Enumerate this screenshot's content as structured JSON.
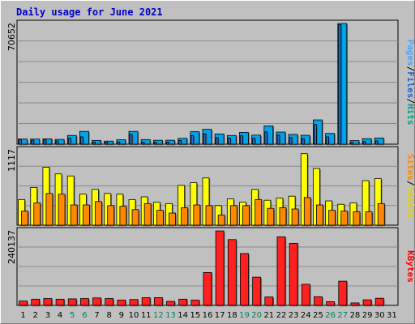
{
  "chart_data": {
    "type": "bar",
    "title": "Daily usage for June 2021",
    "categories": [
      "1",
      "2",
      "3",
      "4",
      "5",
      "6",
      "7",
      "8",
      "9",
      "10",
      "11",
      "12",
      "13",
      "14",
      "15",
      "16",
      "17",
      "18",
      "19",
      "20",
      "21",
      "22",
      "23",
      "24",
      "25",
      "26",
      "27",
      "28",
      "29",
      "30",
      "31"
    ],
    "weekend_days": [
      5,
      6,
      12,
      13,
      19,
      20,
      26,
      27
    ],
    "panels": [
      {
        "id": "hits",
        "ymax": 70652,
        "ymax_label": "70652",
        "series": [
          {
            "name": "Pages",
            "color": "#1f6fd6",
            "values": [
              2800,
              2300,
              2500,
              1900,
              3600,
              4300,
              1200,
              1200,
              1300,
              5800,
              1100,
              1200,
              1200,
              2200,
              5100,
              6100,
              3800,
              3600,
              5000,
              3400,
              7200,
              5300,
              3900,
              3200,
              11500,
              4300,
              70000,
              1000,
              1600,
              1900,
              0
            ]
          },
          {
            "name": "Files",
            "color": "#00a2e8",
            "values": [
              3000,
              3000,
              3100,
              2800,
              5100,
              7500,
              2200,
              1800,
              2600,
              7500,
              2700,
              2300,
              2300,
              3400,
              7300,
              8700,
              6000,
              5100,
              6900,
              5300,
              10700,
              7100,
              5700,
              5200,
              14200,
              6300,
              70000,
              2100,
              3200,
              3600,
              0
            ]
          },
          {
            "name": "Hits",
            "color": "#00a2e8",
            "values": [
              3000,
              3000,
              3100,
              2800,
              5100,
              7500,
              2200,
              1800,
              2600,
              7500,
              2700,
              2300,
              2300,
              3400,
              7300,
              8700,
              6000,
              5100,
              6900,
              5300,
              10700,
              7100,
              5700,
              5200,
              14200,
              6300,
              70652,
              2100,
              3200,
              3600,
              0
            ]
          }
        ],
        "axis_legend": [
          "Pages",
          "Files",
          "Hits"
        ],
        "axis_legend_colors": [
          "#4da6ff",
          "#1e64c8",
          "#00a28c"
        ]
      },
      {
        "id": "visits",
        "ymax": 1117,
        "ymax_label": "1117",
        "series": [
          {
            "name": "Sites",
            "color": "#ff8800",
            "values": [
              210,
              330,
              470,
              460,
              300,
              300,
              350,
              290,
              280,
              230,
              320,
              220,
              180,
              260,
              300,
              290,
              150,
              290,
              290,
              380,
              250,
              260,
              240,
              410,
              300,
              220,
              210,
              200,
              200,
              320,
              0
            ]
          },
          {
            "name": "Visits",
            "color": "#ffff00",
            "values": [
              380,
              560,
              860,
              760,
              730,
              460,
              530,
              470,
              460,
              380,
              420,
              340,
              320,
              590,
              630,
              700,
              290,
              390,
              340,
              530,
              370,
              400,
              430,
              1060,
              840,
              360,
              310,
              330,
              660,
              690,
              0
            ]
          }
        ],
        "axis_legend": [
          "Sites",
          "Visits"
        ],
        "axis_legend_colors": [
          "#ff8800",
          "#e6d200"
        ]
      },
      {
        "id": "kbytes",
        "ymax": 240137,
        "ymax_label": "240137",
        "series": [
          {
            "name": "KBytes",
            "color": "#ff2020",
            "values": [
              14000,
              20000,
              22000,
              20000,
              21000,
              22000,
              24000,
              22000,
              17000,
              19000,
              25000,
              25000,
              13000,
              20000,
              17000,
              106000,
              240000,
              212000,
              167000,
              91000,
              27000,
              221000,
              200000,
              68000,
              28000,
              12000,
              78000,
              8000,
              18000,
              23000,
              0
            ]
          }
        ],
        "axis_legend": [
          "KBytes"
        ],
        "axis_legend_colors": [
          "#ff0000"
        ]
      }
    ],
    "legend_placement": "right (vertical)",
    "grid": true
  }
}
